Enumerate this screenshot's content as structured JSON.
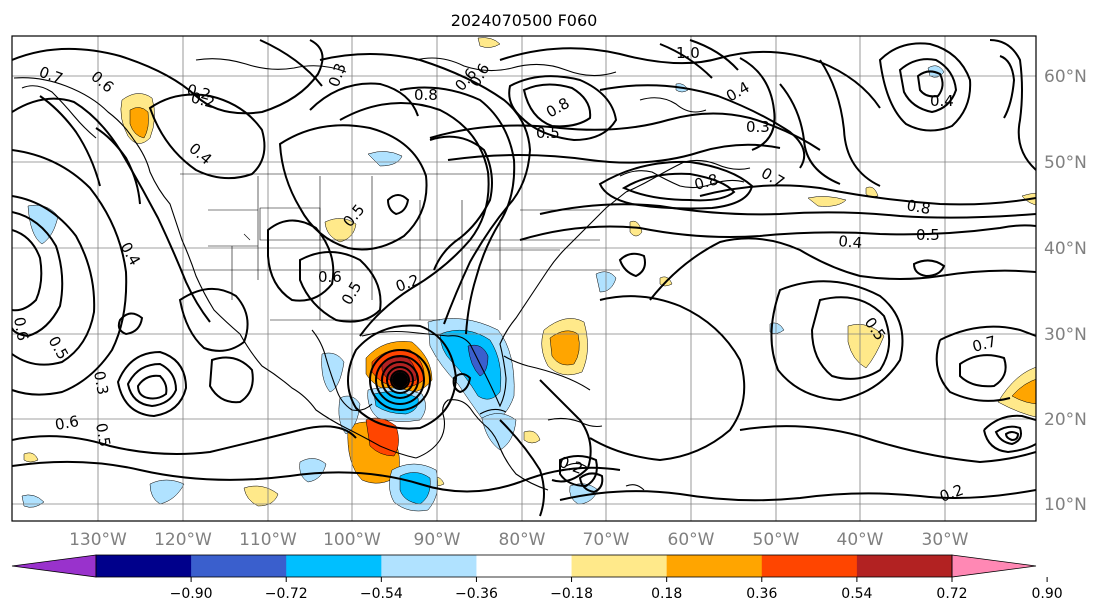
{
  "title": "2024070500 F060",
  "lon_labels": [
    "130°W",
    "120°W",
    "110°W",
    "100°W",
    "90°W",
    "80°W",
    "70°W",
    "60°W",
    "50°W",
    "40°W",
    "30°W"
  ],
  "lat_labels": [
    "60°N",
    "50°N",
    "40°N",
    "30°N",
    "20°N",
    "10°N"
  ],
  "colorbar": {
    "ticks": [
      "−0.90",
      "−0.72",
      "−0.54",
      "−0.36",
      "−0.18",
      "0.18",
      "0.36",
      "0.54",
      "0.72",
      "0.90"
    ],
    "colors": [
      "#9932cc",
      "#00008b",
      "#3a5fcd",
      "#00bfff",
      "#b0e2ff",
      "#ffffff",
      "#ffe98a",
      "#ffa500",
      "#ff4500",
      "#b22222",
      "#ff88b4"
    ]
  },
  "contour_labels": [
    {
      "id": "c01",
      "text": "0.6"
    },
    {
      "id": "c02",
      "text": "0.2"
    },
    {
      "id": "c03",
      "text": "0.6"
    },
    {
      "id": "c04",
      "text": "1.0"
    },
    {
      "id": "c05",
      "text": "0.7"
    },
    {
      "id": "c06",
      "text": "0.4"
    },
    {
      "id": "c07",
      "text": "0.3"
    },
    {
      "id": "c08",
      "text": "0.8"
    },
    {
      "id": "c09",
      "text": "0.5"
    },
    {
      "id": "c10",
      "text": "0.8"
    },
    {
      "id": "c11",
      "text": "0.4"
    },
    {
      "id": "c12",
      "text": "0.5"
    },
    {
      "id": "c13",
      "text": "0.4"
    },
    {
      "id": "c14",
      "text": "0.6"
    },
    {
      "id": "c15",
      "text": "0.2"
    },
    {
      "id": "c16",
      "text": "0.5"
    },
    {
      "id": "c17",
      "text": "0.6"
    },
    {
      "id": "c18",
      "text": "0.5"
    },
    {
      "id": "c19",
      "text": "0.3"
    },
    {
      "id": "c20",
      "text": "0.6"
    },
    {
      "id": "c21",
      "text": "0.5"
    },
    {
      "id": "c22",
      "text": "0.2"
    },
    {
      "id": "c23",
      "text": "0.7"
    },
    {
      "id": "c24",
      "text": "0.2"
    },
    {
      "id": "c25",
      "text": "0.5"
    },
    {
      "id": "c26",
      "text": "0.4"
    },
    {
      "id": "c27",
      "text": "0.8"
    },
    {
      "id": "c28",
      "text": "0.5"
    },
    {
      "id": "c29",
      "text": "0.2"
    },
    {
      "id": "c30",
      "text": "0.7"
    },
    {
      "id": "c31",
      "text": "0.8"
    },
    {
      "id": "c32",
      "text": "0.3"
    },
    {
      "id": "c33",
      "text": "0.4"
    },
    {
      "id": "c34",
      "text": "0.6"
    }
  ]
}
